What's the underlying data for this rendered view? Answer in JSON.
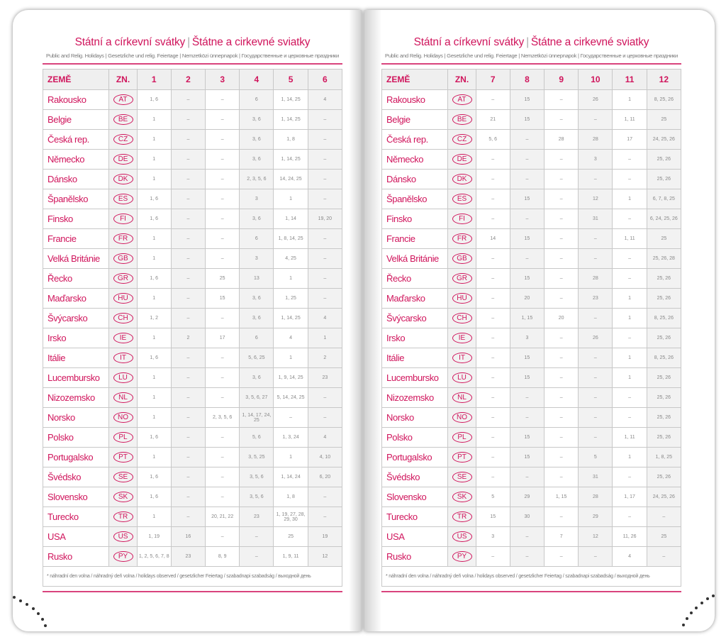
{
  "title_cz": "Státní a církevní svátky",
  "title_sk": "Štátne a cirkevné sviatky",
  "subtitle": "Public and Relig. Holidays | Gesetzliche und relig. Feiertage | Nemzetközi ünnepnapok | Государственные и церковные праздники",
  "col_country": "ZEMĚ",
  "col_code": "ZN.",
  "footnote": "* náhradní den volna / náhradný deň volna / holidays observed / gesetzlicher Feiertag / szabadnapi szabadság / выходной день",
  "colors": {
    "accent": "#d0155c"
  },
  "countries": [
    {
      "name": "Rakousko",
      "code": "AT"
    },
    {
      "name": "Belgie",
      "code": "BE"
    },
    {
      "name": "Česká rep.",
      "code": "CZ"
    },
    {
      "name": "Německo",
      "code": "DE"
    },
    {
      "name": "Dánsko",
      "code": "DK"
    },
    {
      "name": "Španělsko",
      "code": "ES"
    },
    {
      "name": "Finsko",
      "code": "FI"
    },
    {
      "name": "Francie",
      "code": "FR"
    },
    {
      "name": "Velká Británie",
      "code": "GB"
    },
    {
      "name": "Řecko",
      "code": "GR"
    },
    {
      "name": "Maďarsko",
      "code": "HU"
    },
    {
      "name": "Švýcarsko",
      "code": "CH"
    },
    {
      "name": "Irsko",
      "code": "IE"
    },
    {
      "name": "Itálie",
      "code": "IT"
    },
    {
      "name": "Lucembursko",
      "code": "LU"
    },
    {
      "name": "Nizozemsko",
      "code": "NL"
    },
    {
      "name": "Norsko",
      "code": "NO"
    },
    {
      "name": "Polsko",
      "code": "PL"
    },
    {
      "name": "Portugalsko",
      "code": "PT"
    },
    {
      "name": "Švédsko",
      "code": "SE"
    },
    {
      "name": "Slovensko",
      "code": "SK"
    },
    {
      "name": "Turecko",
      "code": "TR"
    },
    {
      "name": "USA",
      "code": "US"
    },
    {
      "name": "Rusko",
      "code": "PY"
    }
  ],
  "left": {
    "months": [
      "1",
      "2",
      "3",
      "4",
      "5",
      "6"
    ],
    "rows": [
      [
        "1, 6",
        "–",
        "–",
        "6",
        "1, 14, 25",
        "4"
      ],
      [
        "1",
        "–",
        "–",
        "3, 6",
        "1, 14, 25",
        "–"
      ],
      [
        "1",
        "–",
        "–",
        "3, 6",
        "1, 8",
        "–"
      ],
      [
        "1",
        "–",
        "–",
        "3, 6",
        "1, 14, 25",
        "–"
      ],
      [
        "1",
        "–",
        "–",
        "2, 3, 5, 6",
        "14, 24, 25",
        "–"
      ],
      [
        "1, 6",
        "–",
        "–",
        "3",
        "1",
        "–"
      ],
      [
        "1, 6",
        "–",
        "–",
        "3, 6",
        "1, 14",
        "19, 20"
      ],
      [
        "1",
        "–",
        "–",
        "6",
        "1, 8, 14, 25",
        "–"
      ],
      [
        "1",
        "–",
        "–",
        "3",
        "4, 25",
        "–"
      ],
      [
        "1, 6",
        "–",
        "25",
        "13",
        "1",
        "–"
      ],
      [
        "1",
        "–",
        "15",
        "3, 6",
        "1, 25",
        "–"
      ],
      [
        "1, 2",
        "–",
        "–",
        "3, 6",
        "1, 14, 25",
        "4"
      ],
      [
        "1",
        "2",
        "17",
        "6",
        "4",
        "1"
      ],
      [
        "1, 6",
        "–",
        "–",
        "5, 6, 25",
        "1",
        "2"
      ],
      [
        "1",
        "–",
        "–",
        "3, 6",
        "1, 9, 14, 25",
        "23"
      ],
      [
        "1",
        "–",
        "–",
        "3, 5, 6, 27",
        "5, 14, 24, 25",
        "–"
      ],
      [
        "1",
        "–",
        "2, 3, 5, 6",
        "1, 14, 17, 24, 25",
        "–",
        "–"
      ],
      [
        "1, 6",
        "–",
        "–",
        "5, 6",
        "1, 3, 24",
        "4"
      ],
      [
        "1",
        "–",
        "–",
        "3, 5, 25",
        "1",
        "4, 10"
      ],
      [
        "1, 6",
        "–",
        "–",
        "3, 5, 6",
        "1, 14, 24",
        "6, 20"
      ],
      [
        "1, 6",
        "–",
        "–",
        "3, 5, 6",
        "1, 8",
        "–"
      ],
      [
        "1",
        "–",
        "20, 21, 22",
        "23",
        "1, 19, 27, 28, 29, 30",
        "–"
      ],
      [
        "1, 19",
        "16",
        "–",
        "–",
        "25",
        "19"
      ],
      [
        "1, 2, 5, 6, 7, 8",
        "23",
        "8, 9",
        "–",
        "1, 9, 11",
        "12"
      ]
    ]
  },
  "right": {
    "months": [
      "7",
      "8",
      "9",
      "10",
      "11",
      "12"
    ],
    "rows": [
      [
        "–",
        "15",
        "–",
        "26",
        "1",
        "8, 25, 26"
      ],
      [
        "21",
        "15",
        "–",
        "–",
        "1, 11",
        "25"
      ],
      [
        "5, 6",
        "–",
        "28",
        "28",
        "17",
        "24, 25, 26"
      ],
      [
        "–",
        "–",
        "–",
        "3",
        "–",
        "25, 26"
      ],
      [
        "–",
        "–",
        "–",
        "–",
        "–",
        "25, 26"
      ],
      [
        "–",
        "15",
        "–",
        "12",
        "1",
        "6, 7, 8, 25"
      ],
      [
        "–",
        "–",
        "–",
        "31",
        "–",
        "6, 24, 25, 26"
      ],
      [
        "14",
        "15",
        "–",
        "–",
        "1, 11",
        "25"
      ],
      [
        "–",
        "–",
        "–",
        "–",
        "–",
        "25, 26, 28"
      ],
      [
        "–",
        "15",
        "–",
        "28",
        "–",
        "25, 26"
      ],
      [
        "–",
        "20",
        "–",
        "23",
        "1",
        "25, 26"
      ],
      [
        "–",
        "1, 15",
        "20",
        "–",
        "1",
        "8, 25, 26"
      ],
      [
        "–",
        "3",
        "–",
        "26",
        "–",
        "25, 26"
      ],
      [
        "–",
        "15",
        "–",
        "–",
        "1",
        "8, 25, 26"
      ],
      [
        "–",
        "15",
        "–",
        "–",
        "1",
        "25, 26"
      ],
      [
        "–",
        "–",
        "–",
        "–",
        "–",
        "25, 26"
      ],
      [
        "–",
        "–",
        "–",
        "–",
        "–",
        "25, 26"
      ],
      [
        "–",
        "15",
        "–",
        "–",
        "1, 11",
        "25, 26"
      ],
      [
        "–",
        "15",
        "–",
        "5",
        "1",
        "1, 8, 25"
      ],
      [
        "–",
        "–",
        "–",
        "31",
        "–",
        "25, 26"
      ],
      [
        "5",
        "29",
        "1, 15",
        "28",
        "1, 17",
        "24, 25, 26"
      ],
      [
        "15",
        "30",
        "–",
        "29",
        "–",
        "–"
      ],
      [
        "3",
        "–",
        "7",
        "12",
        "11, 26",
        "25"
      ],
      [
        "–",
        "–",
        "–",
        "–",
        "4",
        "–"
      ]
    ]
  }
}
